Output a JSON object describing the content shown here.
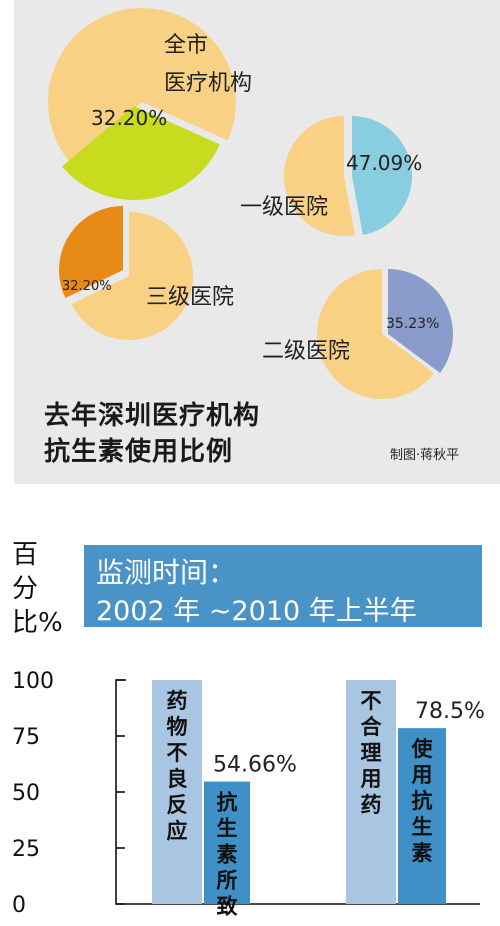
{
  "colors": {
    "panel_bg": "#e9e9e9",
    "pie_base": "#f8d184",
    "citywide": "#c8db1f",
    "primary": "#89cde0",
    "tertiary": "#e88a17",
    "secondary": "#8a9ccc",
    "bar_light": "#a8c6e2",
    "bar_dark": "#3f90c7",
    "header_box": "#4a93c6"
  },
  "top_panel": {
    "title_line1": "去年深圳医疗机构",
    "title_line2": "抗生素使用比例",
    "credit": "制图·蒋秋平"
  },
  "chart_data": [
    {
      "type": "pie",
      "name": "全市医疗机构",
      "name_lines": [
        "全市",
        "医疗机构"
      ],
      "slices": [
        {
          "label": "32.20%",
          "value": 32.2
        }
      ],
      "highlight": 32.2
    },
    {
      "type": "pie",
      "name": "一级医院",
      "slices": [
        {
          "label": "47.09%",
          "value": 47.09
        }
      ],
      "highlight": 47.09
    },
    {
      "type": "pie",
      "name": "三级医院",
      "slices": [
        {
          "label": "32.20%",
          "value": 32.2
        }
      ],
      "highlight": 32.2
    },
    {
      "type": "pie",
      "name": "二级医院",
      "slices": [
        {
          "label": "35.23%",
          "value": 35.23
        }
      ],
      "highlight": 35.23
    },
    {
      "type": "bar",
      "ylabel": "百分比%",
      "ylim": [
        0,
        100
      ],
      "yticks": [
        0,
        25,
        50,
        75,
        100
      ],
      "subtitle_line1": "监测时间：",
      "subtitle_line2": "2002 年 ~2010 年上半年",
      "bars": [
        {
          "label": "药物不良反应",
          "value": 100
        },
        {
          "label": "抗生素所致",
          "value": 54.66,
          "value_label": "54.66%"
        },
        {
          "label": "不合理用药",
          "value": 100
        },
        {
          "label": "使用抗生素",
          "value": 78.5,
          "value_label": "78.5%"
        }
      ]
    }
  ]
}
